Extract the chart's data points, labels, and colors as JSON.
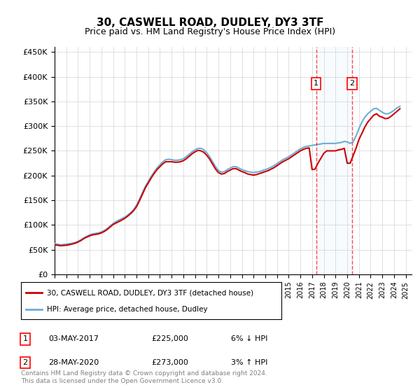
{
  "title": "30, CASWELL ROAD, DUDLEY, DY3 3TF",
  "subtitle": "Price paid vs. HM Land Registry's House Price Index (HPI)",
  "ylabel_ticks": [
    "£0",
    "£50K",
    "£100K",
    "£150K",
    "£200K",
    "£250K",
    "£300K",
    "£350K",
    "£400K",
    "£450K"
  ],
  "ylim": [
    0,
    460000
  ],
  "xlim_start": 1995.0,
  "xlim_end": 2025.5,
  "hpi_color": "#6baed6",
  "price_color": "#cc0000",
  "transaction1_date": "03-MAY-2017",
  "transaction1_price": 225000,
  "transaction1_label": "6% ↓ HPI",
  "transaction1_x": 2017.34,
  "transaction2_date": "28-MAY-2020",
  "transaction2_price": 273000,
  "transaction2_label": "3% ↑ HPI",
  "transaction2_x": 2020.41,
  "legend_label1": "30, CASWELL ROAD, DUDLEY, DY3 3TF (detached house)",
  "legend_label2": "HPI: Average price, detached house, Dudley",
  "footnote": "Contains HM Land Registry data © Crown copyright and database right 2024.\nThis data is licensed under the Open Government Licence v3.0.",
  "marker1": "1",
  "marker2": "2",
  "hpi_data": {
    "years": [
      1995.0,
      1995.25,
      1995.5,
      1995.75,
      1996.0,
      1996.25,
      1996.5,
      1996.75,
      1997.0,
      1997.25,
      1997.5,
      1997.75,
      1998.0,
      1998.25,
      1998.5,
      1998.75,
      1999.0,
      1999.25,
      1999.5,
      1999.75,
      2000.0,
      2000.25,
      2000.5,
      2000.75,
      2001.0,
      2001.25,
      2001.5,
      2001.75,
      2002.0,
      2002.25,
      2002.5,
      2002.75,
      2003.0,
      2003.25,
      2003.5,
      2003.75,
      2004.0,
      2004.25,
      2004.5,
      2004.75,
      2005.0,
      2005.25,
      2005.5,
      2005.75,
      2006.0,
      2006.25,
      2006.5,
      2006.75,
      2007.0,
      2007.25,
      2007.5,
      2007.75,
      2008.0,
      2008.25,
      2008.5,
      2008.75,
      2009.0,
      2009.25,
      2009.5,
      2009.75,
      2010.0,
      2010.25,
      2010.5,
      2010.75,
      2011.0,
      2011.25,
      2011.5,
      2011.75,
      2012.0,
      2012.25,
      2012.5,
      2012.75,
      2013.0,
      2013.25,
      2013.5,
      2013.75,
      2014.0,
      2014.25,
      2014.5,
      2014.75,
      2015.0,
      2015.25,
      2015.5,
      2015.75,
      2016.0,
      2016.25,
      2016.5,
      2016.75,
      2017.0,
      2017.25,
      2017.5,
      2017.75,
      2018.0,
      2018.25,
      2018.5,
      2018.75,
      2019.0,
      2019.25,
      2019.5,
      2019.75,
      2020.0,
      2020.25,
      2020.5,
      2020.75,
      2021.0,
      2021.25,
      2021.5,
      2021.75,
      2022.0,
      2022.25,
      2022.5,
      2022.75,
      2023.0,
      2023.25,
      2023.5,
      2023.75,
      2024.0,
      2024.25,
      2024.5
    ],
    "values": [
      62000,
      61000,
      60000,
      60500,
      61000,
      62000,
      63000,
      64500,
      67000,
      70000,
      74000,
      77000,
      80000,
      82000,
      83000,
      84000,
      86000,
      89000,
      93000,
      98000,
      103000,
      107000,
      110000,
      113000,
      116000,
      120000,
      125000,
      131000,
      140000,
      152000,
      165000,
      178000,
      188000,
      198000,
      207000,
      215000,
      222000,
      228000,
      232000,
      233000,
      232000,
      231000,
      231000,
      232000,
      234000,
      238000,
      243000,
      248000,
      252000,
      255000,
      255000,
      252000,
      246000,
      238000,
      228000,
      218000,
      210000,
      207000,
      208000,
      212000,
      215000,
      218000,
      218000,
      215000,
      212000,
      210000,
      208000,
      207000,
      206000,
      207000,
      208000,
      210000,
      212000,
      214000,
      217000,
      220000,
      224000,
      228000,
      232000,
      235000,
      238000,
      242000,
      246000,
      250000,
      254000,
      257000,
      259000,
      260000,
      261000,
      262000,
      263000,
      264000,
      265000,
      265000,
      265000,
      265000,
      265000,
      266000,
      267000,
      269000,
      268000,
      265000,
      268000,
      280000,
      295000,
      308000,
      318000,
      325000,
      330000,
      335000,
      336000,
      332000,
      328000,
      325000,
      325000,
      328000,
      332000,
      337000,
      340000
    ]
  },
  "price_data": {
    "years": [
      1995.0,
      1995.25,
      1995.5,
      1995.75,
      1996.0,
      1996.25,
      1996.5,
      1996.75,
      1997.0,
      1997.25,
      1997.5,
      1997.75,
      1998.0,
      1998.25,
      1998.5,
      1998.75,
      1999.0,
      1999.25,
      1999.5,
      1999.75,
      2000.0,
      2000.25,
      2000.5,
      2000.75,
      2001.0,
      2001.25,
      2001.5,
      2001.75,
      2002.0,
      2002.25,
      2002.5,
      2002.75,
      2003.0,
      2003.25,
      2003.5,
      2003.75,
      2004.0,
      2004.25,
      2004.5,
      2004.75,
      2005.0,
      2005.25,
      2005.5,
      2005.75,
      2006.0,
      2006.25,
      2006.5,
      2006.75,
      2007.0,
      2007.25,
      2007.5,
      2007.75,
      2008.0,
      2008.25,
      2008.5,
      2008.75,
      2009.0,
      2009.25,
      2009.5,
      2009.75,
      2010.0,
      2010.25,
      2010.5,
      2010.75,
      2011.0,
      2011.25,
      2011.5,
      2011.75,
      2012.0,
      2012.25,
      2012.5,
      2012.75,
      2013.0,
      2013.25,
      2013.5,
      2013.75,
      2014.0,
      2014.25,
      2014.5,
      2014.75,
      2015.0,
      2015.25,
      2015.5,
      2015.75,
      2016.0,
      2016.25,
      2016.5,
      2016.75,
      2017.0,
      2017.25,
      2017.5,
      2017.75,
      2018.0,
      2018.25,
      2018.5,
      2018.75,
      2019.0,
      2019.25,
      2019.5,
      2019.75,
      2020.0,
      2020.25,
      2020.5,
      2020.75,
      2021.0,
      2021.25,
      2021.5,
      2021.75,
      2022.0,
      2022.25,
      2022.5,
      2022.75,
      2023.0,
      2023.25,
      2023.5,
      2023.75,
      2024.0,
      2024.25,
      2024.5
    ],
    "values": [
      60000,
      59000,
      58000,
      58500,
      59000,
      60000,
      61500,
      63000,
      65500,
      68500,
      72500,
      75500,
      78000,
      80000,
      81000,
      82000,
      84000,
      87000,
      91000,
      96000,
      101000,
      104000,
      107000,
      110000,
      113500,
      118000,
      123000,
      129000,
      137000,
      149000,
      162000,
      175000,
      185000,
      195000,
      204000,
      212000,
      218000,
      224000,
      228000,
      228000,
      228000,
      227000,
      227000,
      228000,
      230000,
      234000,
      239000,
      244000,
      248000,
      251000,
      250000,
      247000,
      241000,
      233000,
      223000,
      213000,
      206000,
      203000,
      204000,
      208000,
      211000,
      214000,
      214000,
      211000,
      208000,
      206000,
      203000,
      202000,
      201000,
      202000,
      204000,
      206000,
      208000,
      210000,
      213000,
      216000,
      220000,
      224000,
      228000,
      231000,
      234000,
      238000,
      242000,
      246000,
      250000,
      253000,
      255000,
      256000,
      212000,
      213000,
      225000,
      235000,
      245000,
      250000,
      250000,
      250000,
      250000,
      252000,
      253000,
      255000,
      225000,
      225000,
      240000,
      255000,
      273000,
      285000,
      298000,
      308000,
      315000,
      322000,
      325000,
      320000,
      318000,
      315000,
      316000,
      320000,
      325000,
      330000,
      335000
    ]
  }
}
